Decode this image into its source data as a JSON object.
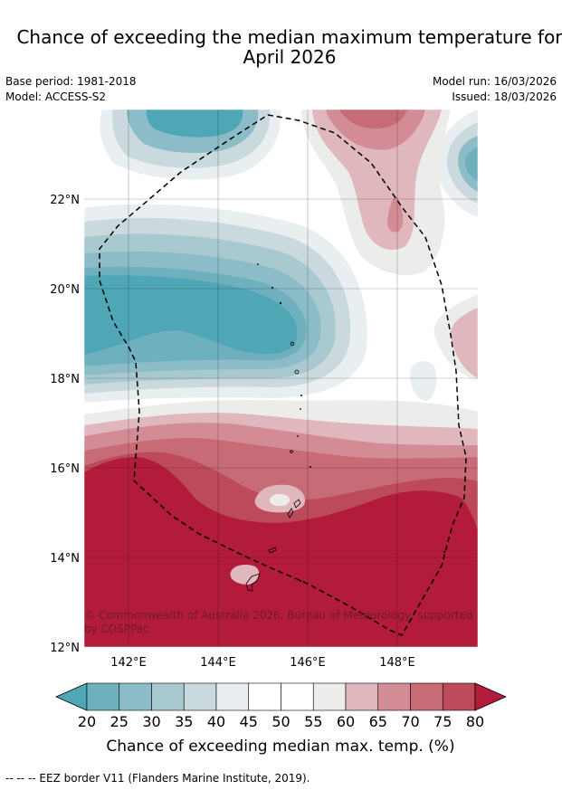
{
  "title_line1": "Chance of exceeding the median maximum temperature for",
  "title_line2": "April 2026",
  "meta": {
    "base_period": "Base period: 1981-2018",
    "model": "Model: ACCESS-S2",
    "model_run": "Model run: 16/03/2026",
    "issued": "Issued: 18/03/2026"
  },
  "map": {
    "lon_ticks": [
      "142°E",
      "144°E",
      "146°E",
      "148°E"
    ],
    "lat_ticks": [
      "22°N",
      "20°N",
      "18°N",
      "16°N",
      "14°N",
      "12°N"
    ],
    "lon_range": [
      141,
      149.8
    ],
    "lat_range": [
      12,
      23.9
    ],
    "copyright_line1": "© Commonwealth of Australia 2026, Bureau of Meteorology, supported",
    "copyright_line2": "by COSPPac"
  },
  "colorbar": {
    "levels": [
      "20",
      "25",
      "30",
      "35",
      "40",
      "45",
      "50",
      "55",
      "60",
      "65",
      "70",
      "75",
      "80"
    ],
    "colors": [
      "#4fa6b5",
      "#6fb0be",
      "#8cbcc7",
      "#a9c9d0",
      "#c9d9dd",
      "#e9eff1",
      "#ffffff",
      "#ffffff",
      "#ececea",
      "#dfb7bd",
      "#d38c96",
      "#c76b76",
      "#bd4a5a",
      "#b21c3a"
    ],
    "label": "Chance of exceeding median max. temp. (%)"
  },
  "footnote": "-- -- -- EEZ border V11 (Flanders Marine Institute, 2019)."
}
